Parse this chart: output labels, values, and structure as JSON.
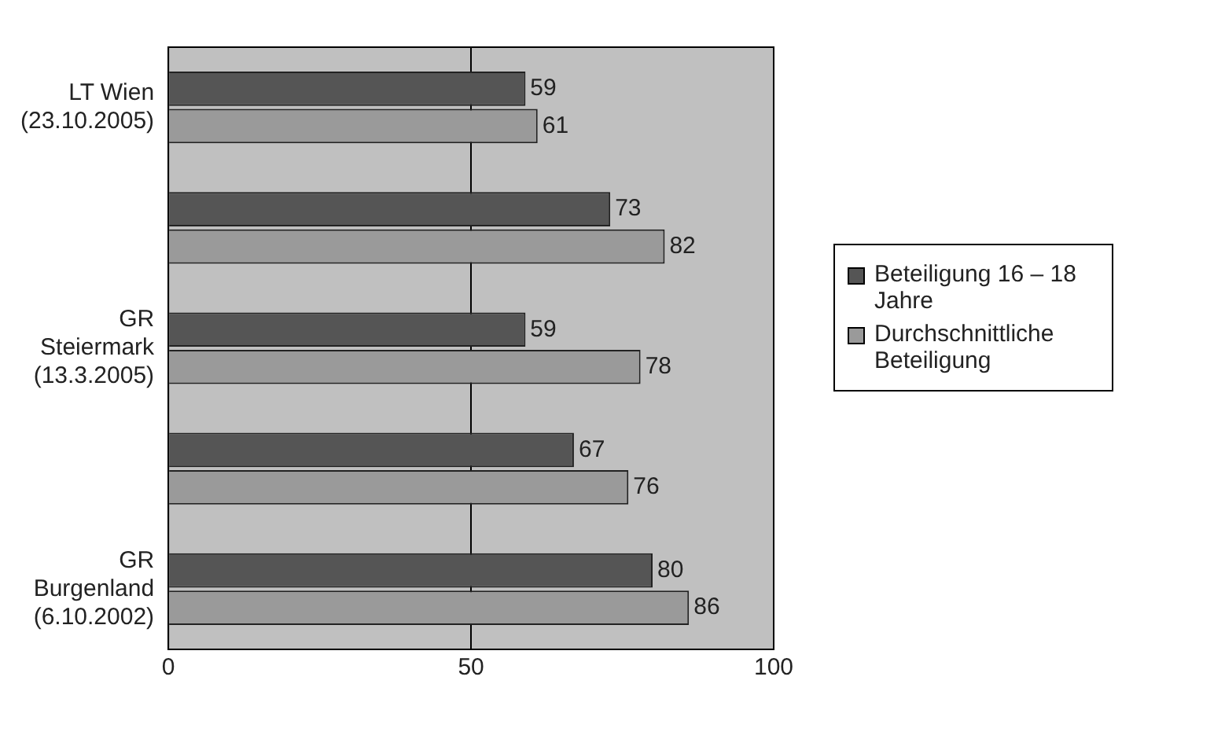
{
  "chart_data": {
    "type": "bar",
    "orientation": "horizontal",
    "categories": [
      "LT Wien (23.10.2005)",
      null,
      "GR Steiermark (13.3.2005)",
      null,
      "GR Burgenland (6.10.2002)"
    ],
    "series": [
      {
        "name": "Beteiligung 16 – 18 Jahre",
        "color": "#555555",
        "values": [
          59,
          73,
          59,
          67,
          80
        ]
      },
      {
        "name": "Durchschnittliche Beteiligung",
        "color": "#9a9a9a",
        "values": [
          61,
          82,
          78,
          76,
          86
        ]
      }
    ],
    "xlim": [
      0,
      100
    ],
    "xticks": [
      0,
      50,
      100
    ],
    "grid": "x",
    "legend": "right",
    "data_labels": true
  }
}
